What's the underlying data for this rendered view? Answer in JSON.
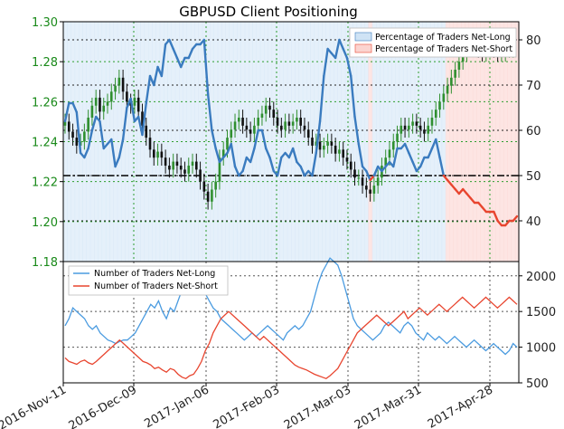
{
  "chart_data": [
    {
      "type": "line",
      "title": "GBPUSD Client Positioning",
      "left_axis": {
        "ticks": [
          "1.18",
          "1.20",
          "1.22",
          "1.24",
          "1.26",
          "1.28",
          "1.30"
        ],
        "range": [
          1.18,
          1.3
        ]
      },
      "right_axis": {
        "ticks": [
          "40",
          "50",
          "60",
          "70",
          "80"
        ],
        "range": [
          31,
          84
        ]
      },
      "x_ticks": [
        "2016-Nov-11",
        "2016-Dec-09",
        "2017-Jan-06",
        "2017-Feb-03",
        "2017-Mar-03",
        "2017-Mar-31",
        "2017-Apr-28"
      ],
      "legend": [
        "Percentage of Traders Net-Long",
        "Percentage of Traders Net-Short"
      ],
      "reference_line": 50,
      "colors": {
        "net_long": "#3a7bbf",
        "net_short": "#e8452f",
        "price_up": "#2f8f2f",
        "price_down": "#111111",
        "long_fill": "#cfe3f5",
        "short_fill": "#fbd4d0"
      },
      "net_long_pct": [
        62,
        66,
        66,
        64,
        55,
        54,
        56,
        60,
        63,
        62,
        56,
        57,
        58,
        52,
        54,
        58,
        65,
        67,
        62,
        63,
        59,
        66,
        72,
        70,
        74,
        72,
        79,
        80,
        78,
        76,
        74,
        76,
        76,
        78,
        79,
        79,
        80,
        68,
        60,
        56,
        53,
        54,
        55,
        57,
        52,
        50,
        51,
        54,
        53,
        56,
        60,
        60,
        56,
        54,
        51,
        50,
        54,
        55,
        54,
        56,
        53,
        52,
        50,
        51,
        50,
        55,
        62,
        72,
        78,
        77,
        76,
        80,
        78,
        76,
        72,
        63,
        57,
        52,
        51,
        49,
        50,
        52,
        51,
        52,
        53,
        52,
        56,
        56,
        57,
        55,
        53,
        51,
        52,
        54,
        54,
        56,
        58,
        54,
        50,
        49,
        48,
        47,
        46,
        47,
        46,
        45,
        44,
        44,
        43,
        42,
        42,
        42,
        40,
        39,
        39,
        40,
        40,
        41
      ],
      "price_open": [
        1.248,
        1.25,
        1.245,
        1.242,
        1.238,
        1.24,
        1.245,
        1.252,
        1.258,
        1.262,
        1.255,
        1.258,
        1.26,
        1.265,
        1.268,
        1.272,
        1.265,
        1.26,
        1.258,
        1.262,
        1.255,
        1.248,
        1.242,
        1.236,
        1.232,
        1.235,
        1.232,
        1.228,
        1.226,
        1.23,
        1.228,
        1.226,
        1.224,
        1.228,
        1.23,
        1.226,
        1.22,
        1.215,
        1.21,
        1.216,
        1.22,
        1.232,
        1.236,
        1.242,
        1.246,
        1.25,
        1.252,
        1.248,
        1.246,
        1.244,
        1.248,
        1.252,
        1.254,
        1.258,
        1.256,
        1.252,
        1.248,
        1.246,
        1.25,
        1.248,
        1.25,
        1.252,
        1.248,
        1.246,
        1.242,
        1.238,
        1.24,
        1.236,
        1.238,
        1.24,
        1.238,
        1.234,
        1.236,
        1.232,
        1.23,
        1.226,
        1.222,
        1.222,
        1.218,
        1.216,
        1.214,
        1.218,
        1.222,
        1.228,
        1.232,
        1.236,
        1.24,
        1.244,
        1.248,
        1.246,
        1.248,
        1.25,
        1.248,
        1.246,
        1.244,
        1.248,
        1.252,
        1.256,
        1.26,
        1.264,
        1.268,
        1.272,
        1.276,
        1.28,
        1.284,
        1.288,
        1.29,
        1.288,
        1.286,
        1.284,
        1.286,
        1.288,
        1.286,
        1.284,
        1.284,
        1.286,
        1.286
      ],
      "price_close": [
        1.25,
        1.245,
        1.242,
        1.238,
        1.24,
        1.245,
        1.252,
        1.258,
        1.262,
        1.255,
        1.258,
        1.26,
        1.265,
        1.268,
        1.272,
        1.265,
        1.26,
        1.258,
        1.262,
        1.255,
        1.248,
        1.242,
        1.236,
        1.232,
        1.235,
        1.232,
        1.228,
        1.226,
        1.23,
        1.228,
        1.226,
        1.224,
        1.228,
        1.23,
        1.226,
        1.22,
        1.215,
        1.21,
        1.216,
        1.22,
        1.232,
        1.236,
        1.242,
        1.246,
        1.25,
        1.252,
        1.248,
        1.246,
        1.244,
        1.248,
        1.252,
        1.254,
        1.258,
        1.256,
        1.252,
        1.248,
        1.246,
        1.25,
        1.248,
        1.25,
        1.252,
        1.248,
        1.246,
        1.242,
        1.238,
        1.24,
        1.236,
        1.238,
        1.24,
        1.238,
        1.234,
        1.236,
        1.232,
        1.23,
        1.226,
        1.222,
        1.222,
        1.218,
        1.216,
        1.214,
        1.218,
        1.222,
        1.228,
        1.232,
        1.236,
        1.24,
        1.244,
        1.248,
        1.246,
        1.248,
        1.25,
        1.248,
        1.246,
        1.244,
        1.248,
        1.252,
        1.256,
        1.26,
        1.264,
        1.268,
        1.272,
        1.276,
        1.28,
        1.284,
        1.288,
        1.29,
        1.288,
        1.286,
        1.284,
        1.286,
        1.288,
        1.286,
        1.284,
        1.284,
        1.286,
        1.286,
        1.288
      ]
    },
    {
      "type": "line",
      "legend": [
        "Number of Traders Net-Long",
        "Number of Traders Net-Short"
      ],
      "y_axis": {
        "ticks": [
          "500",
          "1000",
          "1500",
          "2000"
        ],
        "range": [
          500,
          2200
        ]
      },
      "series": [
        {
          "name": "Number of Traders Net-Long",
          "values": [
            1300,
            1400,
            1550,
            1500,
            1450,
            1400,
            1300,
            1250,
            1300,
            1200,
            1150,
            1100,
            1080,
            1050,
            1080,
            1100,
            1100,
            1150,
            1200,
            1300,
            1400,
            1500,
            1600,
            1550,
            1650,
            1500,
            1400,
            1550,
            1500,
            1650,
            1800,
            1900,
            2000,
            1950,
            1850,
            1800,
            1750,
            1650,
            1550,
            1500,
            1400,
            1350,
            1300,
            1250,
            1200,
            1150,
            1100,
            1150,
            1200,
            1150,
            1200,
            1250,
            1300,
            1250,
            1200,
            1150,
            1100,
            1200,
            1250,
            1300,
            1250,
            1300,
            1400,
            1500,
            1700,
            1900,
            2050,
            2150,
            2250,
            2200,
            2150,
            2000,
            1800,
            1600,
            1400,
            1300,
            1250,
            1200,
            1150,
            1100,
            1150,
            1200,
            1300,
            1350,
            1300,
            1250,
            1200,
            1300,
            1350,
            1300,
            1200,
            1150,
            1100,
            1200,
            1150,
            1100,
            1150,
            1100,
            1050,
            1100,
            1150,
            1100,
            1050,
            1000,
            1050,
            1100,
            1050,
            1000,
            950,
            1000,
            1050,
            1000,
            950,
            900,
            950,
            1050,
            1000
          ]
        },
        {
          "name": "Number of Traders Net-Short",
          "values": [
            850,
            800,
            780,
            760,
            800,
            820,
            780,
            760,
            800,
            850,
            900,
            950,
            1000,
            1050,
            1100,
            1050,
            1000,
            950,
            900,
            850,
            800,
            780,
            750,
            700,
            720,
            680,
            650,
            700,
            680,
            620,
            580,
            560,
            600,
            620,
            700,
            800,
            950,
            1050,
            1200,
            1300,
            1400,
            1450,
            1500,
            1450,
            1400,
            1350,
            1300,
            1250,
            1200,
            1150,
            1100,
            1150,
            1100,
            1050,
            1000,
            950,
            900,
            850,
            800,
            750,
            720,
            700,
            680,
            650,
            620,
            600,
            580,
            560,
            600,
            650,
            700,
            800,
            900,
            1000,
            1100,
            1200,
            1250,
            1300,
            1350,
            1400,
            1450,
            1400,
            1350,
            1300,
            1350,
            1400,
            1450,
            1500,
            1400,
            1450,
            1500,
            1550,
            1500,
            1450,
            1500,
            1550,
            1600,
            1550,
            1500,
            1550,
            1600,
            1650,
            1700,
            1650,
            1600,
            1550,
            1600,
            1650,
            1700,
            1650,
            1600,
            1550,
            1600,
            1650,
            1700,
            1650,
            1600
          ]
        }
      ]
    }
  ]
}
